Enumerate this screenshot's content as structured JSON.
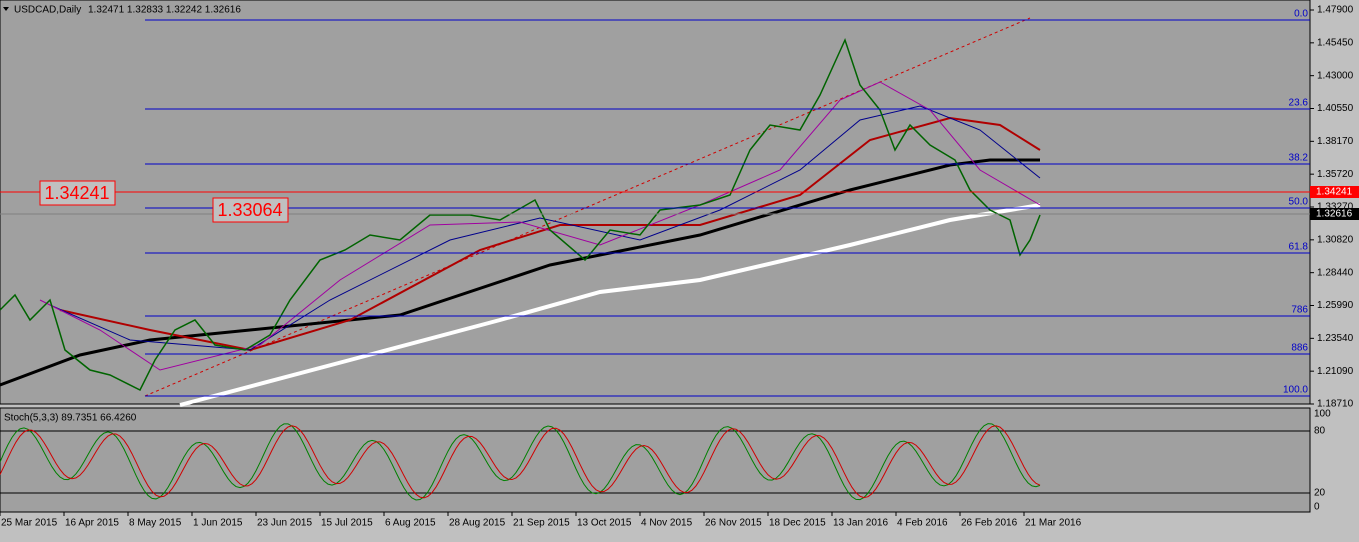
{
  "header": {
    "symbol": "USDCAD,Daily",
    "quote": "1.32471 1.32833 1.32242 1.32616"
  },
  "price_axis": [
    "1.47900",
    "1.45450",
    "1.43000",
    "1.40550",
    "1.38170",
    "1.35720",
    "1.33270",
    "1.30820",
    "1.28440",
    "1.25990",
    "1.23540",
    "1.21090",
    "1.18710"
  ],
  "price_tags": {
    "red_line": "1.34241",
    "current": "1.32616"
  },
  "chart_labels": [
    "1.34241",
    "1.33064"
  ],
  "fib_levels": [
    "0.0",
    "23.6",
    "38.2",
    "50.0",
    "61.8",
    "786",
    "886",
    "100.0"
  ],
  "stochastic": {
    "label": "Stoch(5,3,3) 89.7351 66.4260",
    "axis": [
      "100",
      "80",
      "20",
      "0"
    ]
  },
  "dates": [
    "25 Mar 2015",
    "16 Apr 2015",
    "8 May 2015",
    "1 Jun 2015",
    "23 Jun 2015",
    "15 Jul 2015",
    "6 Aug 2015",
    "28 Aug 2015",
    "21 Sep 2015",
    "13 Oct 2015",
    "4 Nov 2015",
    "26 Nov 2015",
    "18 Dec 2015",
    "13 Jan 2016",
    "4 Feb 2016",
    "26 Feb 2016",
    "21 Mar 2016"
  ]
}
